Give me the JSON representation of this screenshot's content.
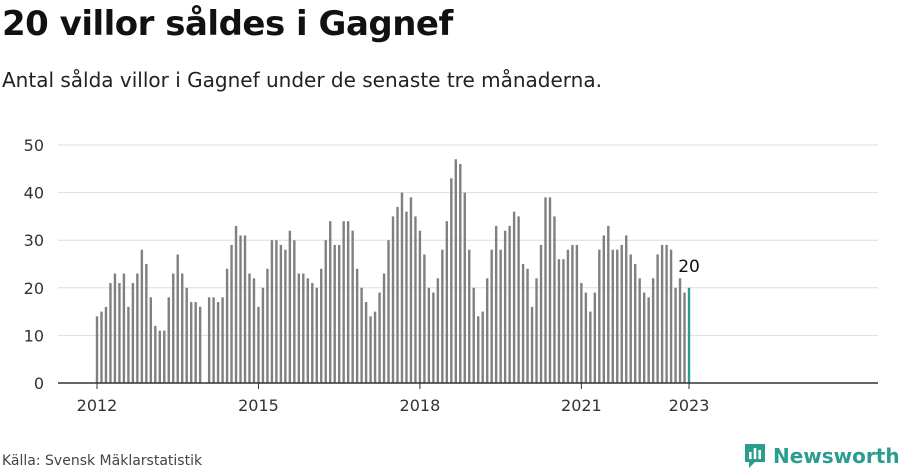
{
  "header": {
    "title": "20 villor såldes i Gagnef",
    "subtitle": "Antal sålda villor i Gagnef under de senaste tre månaderna."
  },
  "footer": {
    "source": "Källa: Svensk Mäklarstatistik",
    "brand": "Newsworthy",
    "brand_icon": "newsworthy-logo-icon"
  },
  "colors": {
    "bar": "#808080",
    "highlight": "#2a9d8f",
    "grid": "#dddddd",
    "axis": "#333333",
    "brand": "#2a9d8f"
  },
  "chart_data": {
    "type": "bar",
    "title": "",
    "xlabel": "",
    "ylabel": "",
    "ylim": [
      0,
      50
    ],
    "yticks": [
      0,
      10,
      20,
      30,
      40,
      50
    ],
    "xticks": [
      "2012",
      "2015",
      "2018",
      "2021",
      "2023"
    ],
    "grid": true,
    "highlight_label": "20",
    "series": [
      {
        "values": [
          14,
          15,
          16,
          21,
          23,
          21,
          23,
          16,
          21,
          23,
          28,
          25,
          18,
          12,
          11,
          11,
          18,
          23,
          27,
          23,
          20,
          17,
          17,
          16,
          null,
          18,
          18,
          17,
          18,
          24,
          29,
          33,
          31,
          31,
          23,
          22,
          16,
          20,
          24,
          30,
          30,
          29,
          28,
          32,
          30,
          23,
          23,
          22,
          21,
          20,
          24,
          30,
          34,
          29,
          29,
          34,
          34,
          32,
          24,
          20,
          17,
          14,
          15,
          19,
          23,
          30,
          35,
          37,
          40,
          36,
          39,
          35,
          32,
          27,
          20,
          19,
          22,
          28,
          34,
          43,
          47,
          46,
          40,
          28,
          20,
          14,
          15,
          22,
          28,
          33,
          28,
          32,
          33,
          36,
          35,
          25,
          24,
          16,
          22,
          29,
          39,
          39,
          35,
          26,
          26,
          28,
          29,
          29,
          21,
          19,
          15,
          19,
          28,
          31,
          33,
          28,
          28,
          29,
          31,
          27,
          25,
          22,
          19,
          18,
          22,
          27,
          29,
          29,
          28,
          20,
          22,
          19,
          20
        ]
      }
    ]
  }
}
